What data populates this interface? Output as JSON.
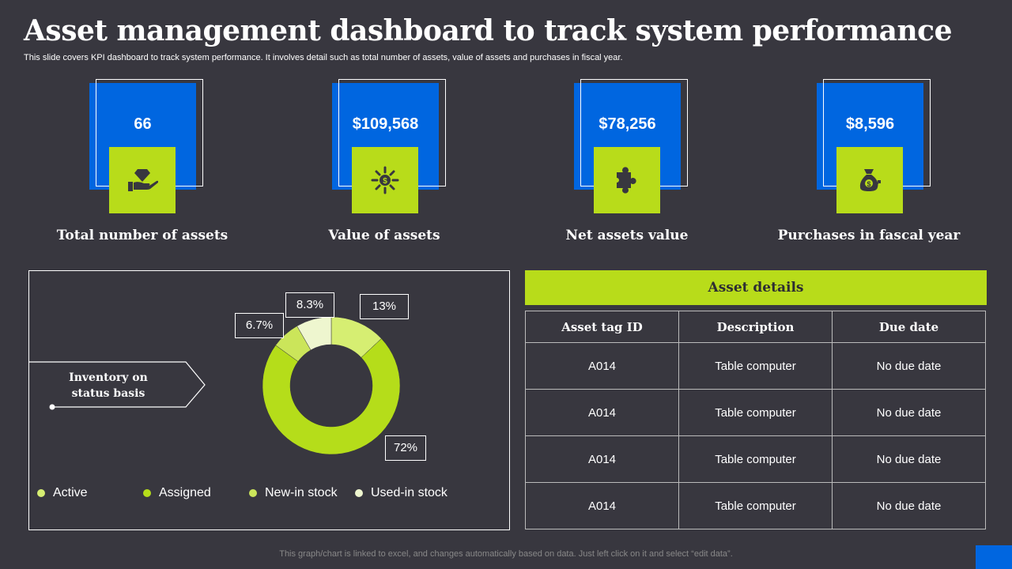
{
  "header": {
    "title": "Asset management dashboard to track system performance",
    "subtitle": "This slide covers KPI dashboard to track system performance. It involves detail such as total number of assets, value of assets and purchases in fiscal year."
  },
  "kpis": [
    {
      "value": "66",
      "label": "Total number of assets",
      "icon": "hand-diamond-icon"
    },
    {
      "value": "$109,568",
      "label": "Value of assets",
      "icon": "dollar-sun-icon"
    },
    {
      "value": "$78,256",
      "label": "Net assets value",
      "icon": "puzzle-icon"
    },
    {
      "value": "$8,596",
      "label": "Purchases in fascal year",
      "icon": "money-bag-icon"
    }
  ],
  "colors": {
    "background": "#38373f",
    "blue": "#0066e0",
    "green": "#b8dc1a"
  },
  "inventory": {
    "label": "Inventory on status basis"
  },
  "chart_data": {
    "type": "pie",
    "donut": true,
    "categories": [
      "Active",
      "Assigned",
      "New-in stock",
      "Used-in stock"
    ],
    "values": [
      13,
      72,
      6.7,
      8.3
    ],
    "data_labels": [
      "13%",
      "72%",
      "6.7%",
      "8.3%"
    ],
    "colors": [
      "#d6ee72",
      "#b5dd1a",
      "#cbe55a",
      "#eef6cf"
    ],
    "legend": "bottom"
  },
  "details": {
    "title": "Asset details",
    "columns": [
      "Asset tag ID",
      "Description",
      "Due date"
    ],
    "rows": [
      [
        "A014",
        "Table computer",
        "No due date"
      ],
      [
        "A014",
        "Table computer",
        "No due date"
      ],
      [
        "A014",
        "Table computer",
        "No due date"
      ],
      [
        "A014",
        "Table computer",
        "No due date"
      ]
    ]
  },
  "footer": "This graph/chart is linked to excel, and changes automatically based on data. Just left click on it and select “edit data”."
}
